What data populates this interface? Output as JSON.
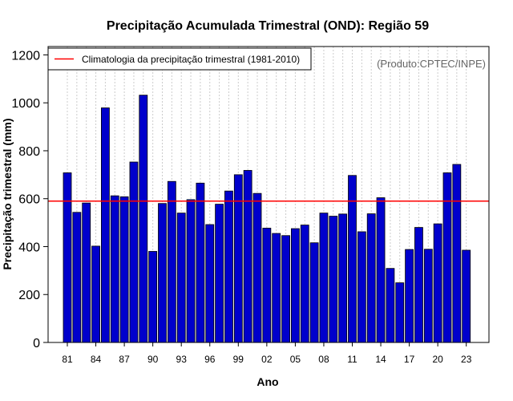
{
  "colors": {
    "bar_fill": "#0000cc",
    "bar_stroke": "#000000",
    "climatology_line": "#ff0000",
    "grid": "#cccccc",
    "source_text": "#666666"
  },
  "chart_data": {
    "type": "bar",
    "title": "Precipitação Acumulada Trimestral (OND): Região 59",
    "xlabel": "Ano",
    "ylabel": "Precipitação trimestral (mm)",
    "source_note": "(Produto:CPTEC/INPE)",
    "legend": {
      "position": "top-left",
      "entries": [
        {
          "label": "Climatologia da precipitação trimestral (1981-2010)",
          "type": "line"
        }
      ]
    },
    "ylim": [
      0,
      1200
    ],
    "yticks": [
      0,
      200,
      400,
      600,
      800,
      1000,
      1200
    ],
    "climatology": 590,
    "grid": "vertical dotted",
    "categories": [
      1981,
      1982,
      1983,
      1984,
      1985,
      1986,
      1987,
      1988,
      1989,
      1990,
      1991,
      1992,
      1993,
      1994,
      1995,
      1996,
      1997,
      1998,
      1999,
      2000,
      2001,
      2002,
      2003,
      2004,
      2005,
      2006,
      2007,
      2008,
      2009,
      2010,
      2011,
      2012,
      2013,
      2014,
      2015,
      2016,
      2017,
      2018,
      2019,
      2020,
      2021,
      2022,
      2023
    ],
    "values": [
      708,
      543,
      582,
      402,
      979,
      612,
      608,
      753,
      1032,
      380,
      580,
      672,
      540,
      596,
      665,
      492,
      577,
      632,
      700,
      718,
      622,
      477,
      455,
      446,
      475,
      490,
      416,
      540,
      527,
      536,
      697,
      462,
      537,
      604,
      309,
      249,
      388,
      480,
      389,
      495,
      708,
      743,
      385
    ],
    "xtick_labels": [
      "81",
      "84",
      "87",
      "90",
      "93",
      "96",
      "99",
      "02",
      "05",
      "08",
      "11",
      "14",
      "17",
      "20",
      "23"
    ],
    "xtick_years": [
      1981,
      1984,
      1987,
      1990,
      1993,
      1996,
      1999,
      2002,
      2005,
      2008,
      2011,
      2014,
      2017,
      2020,
      2023
    ]
  }
}
